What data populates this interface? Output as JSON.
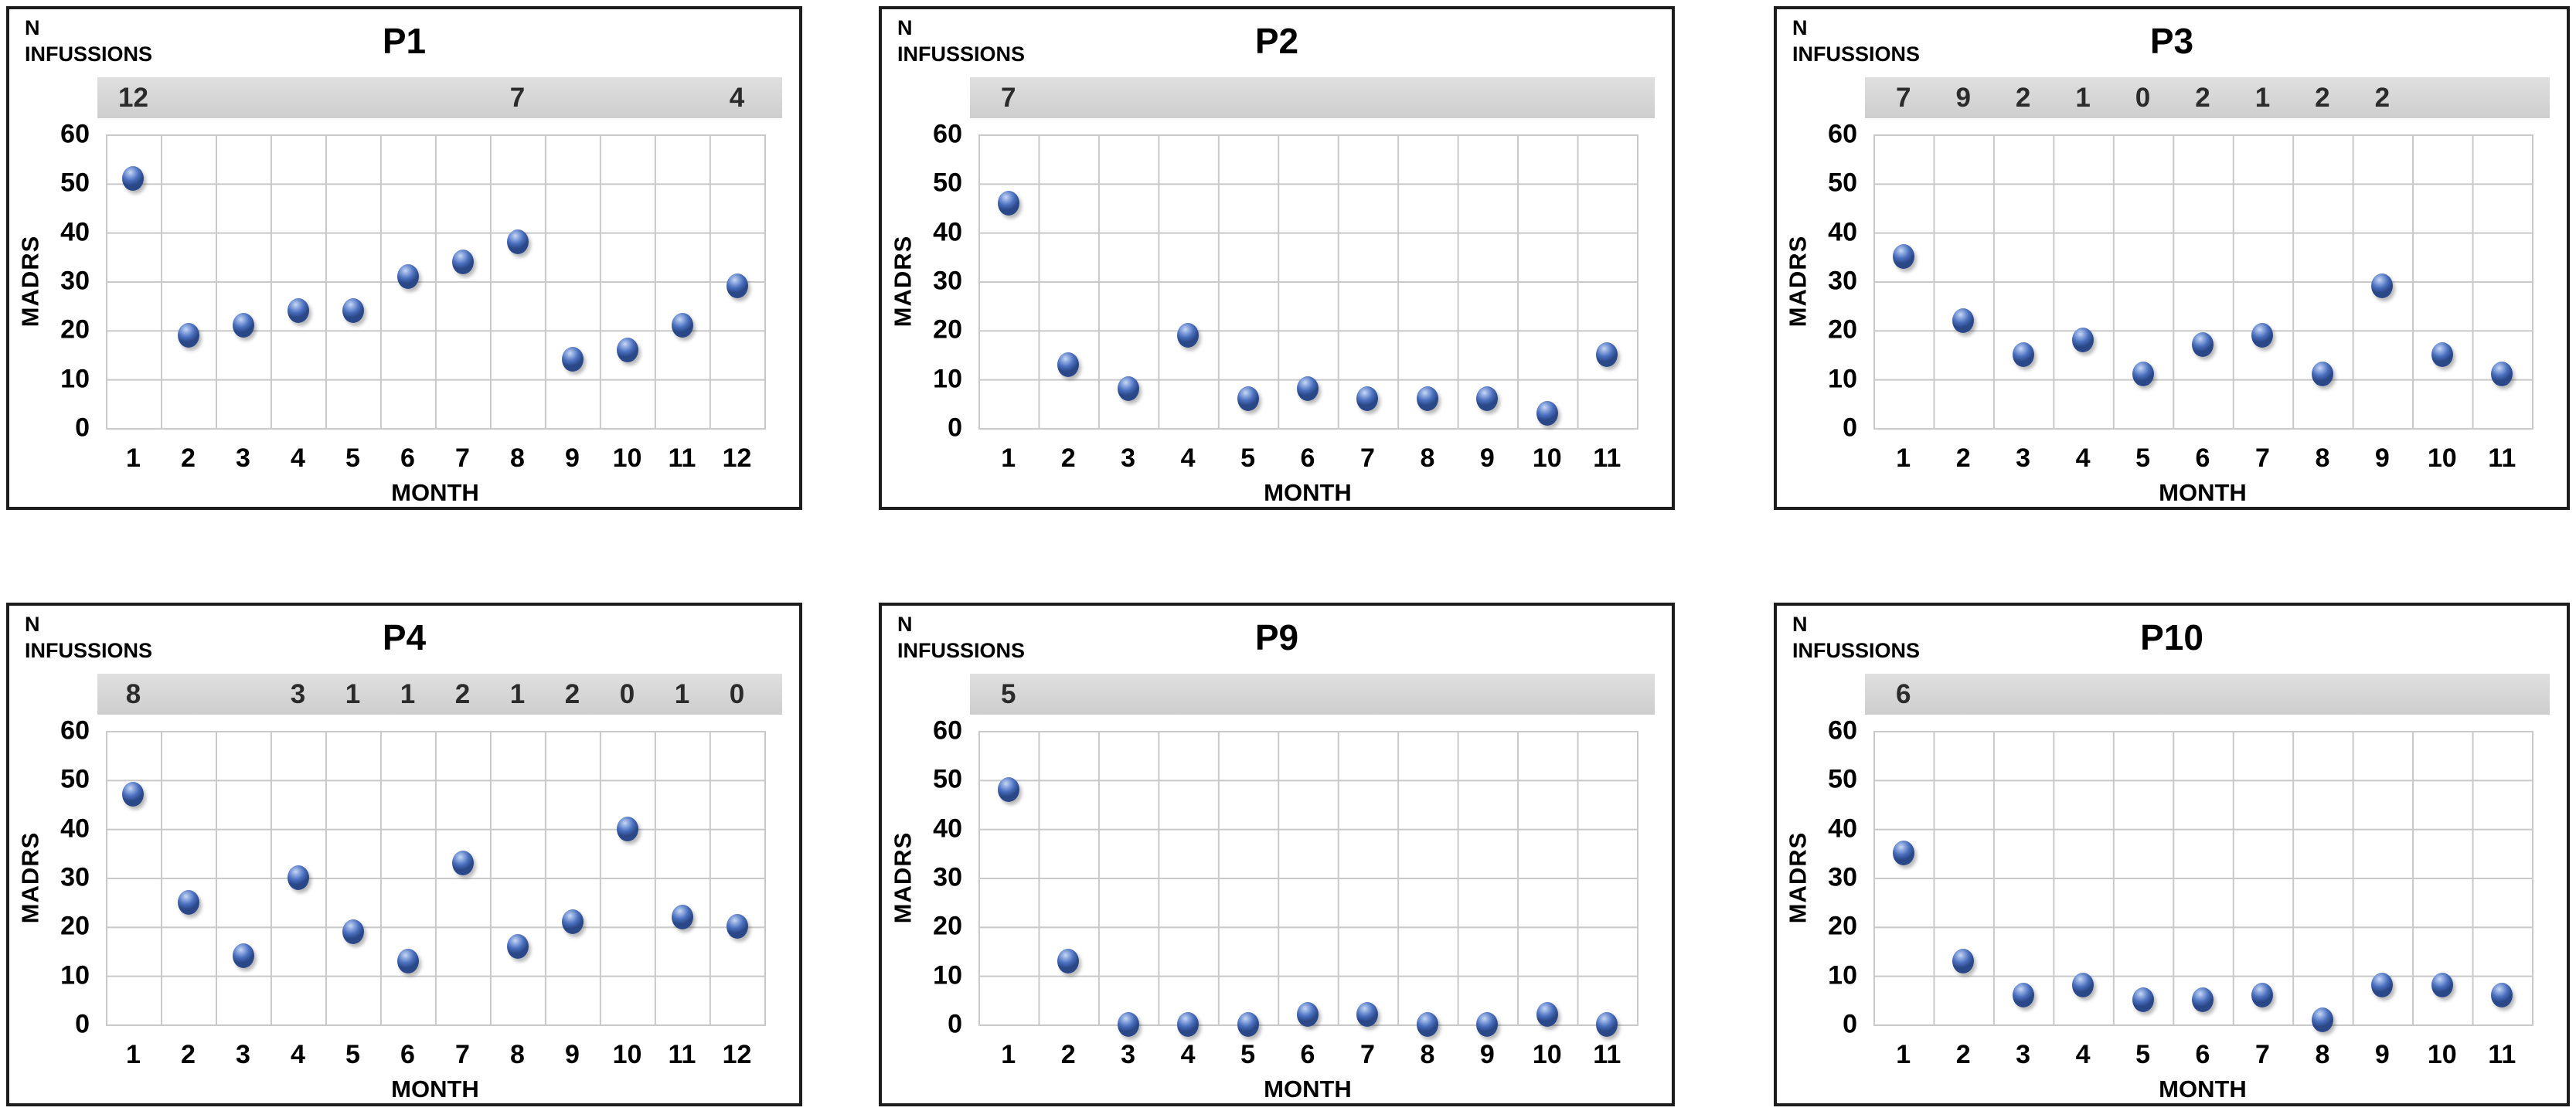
{
  "shared": {
    "xlabel": "MONTH",
    "ylabel": "MADRS",
    "infusions_line1": "N",
    "infusions_line2": "INFUSSIONS",
    "y_ticks": [
      60,
      50,
      40,
      30,
      20,
      10,
      0
    ]
  },
  "colors": {
    "point_fill": "#4a6fbe",
    "point_edge": "#2a4787",
    "point_highlight": "#c9d8f4",
    "infusion_bar_bg": "#d2d2d2",
    "gridline": "#c9c9c9",
    "panel_border": "#1d1d1d",
    "text": "#000000",
    "infusion_text": "#2b2b2b"
  },
  "chart_data": [
    {
      "type": "scatter",
      "title": "P1",
      "xlabel": "MONTH",
      "ylabel": "MADRS",
      "ylim": [
        0,
        60
      ],
      "grid": true,
      "x": [
        1,
        2,
        3,
        4,
        5,
        6,
        7,
        8,
        9,
        10,
        11,
        12
      ],
      "y": [
        51,
        19,
        21,
        24,
        24,
        31,
        34,
        38,
        14,
        16,
        21,
        29
      ],
      "infusions": [
        {
          "month": 1,
          "count": "12"
        },
        {
          "month": 8,
          "count": "7"
        },
        {
          "month": 12,
          "count": "4"
        }
      ]
    },
    {
      "type": "scatter",
      "title": "P2",
      "xlabel": "MONTH",
      "ylabel": "MADRS",
      "ylim": [
        0,
        60
      ],
      "grid": true,
      "x": [
        1,
        2,
        3,
        4,
        5,
        6,
        7,
        8,
        9,
        10,
        11
      ],
      "y": [
        46,
        13,
        8,
        19,
        6,
        8,
        6,
        6,
        6,
        3,
        15
      ],
      "infusions": [
        {
          "month": 1,
          "count": "7"
        }
      ]
    },
    {
      "type": "scatter",
      "title": "P3",
      "xlabel": "MONTH",
      "ylabel": "MADRS",
      "ylim": [
        0,
        60
      ],
      "grid": true,
      "x": [
        1,
        2,
        3,
        4,
        5,
        6,
        7,
        8,
        9,
        10,
        11
      ],
      "y": [
        35,
        22,
        15,
        18,
        11,
        17,
        19,
        11,
        29,
        15,
        11
      ],
      "infusions": [
        {
          "month": 1,
          "count": "7"
        },
        {
          "month": 2,
          "count": "9"
        },
        {
          "month": 3,
          "count": "2"
        },
        {
          "month": 4,
          "count": "1"
        },
        {
          "month": 5,
          "count": "0"
        },
        {
          "month": 6,
          "count": "2"
        },
        {
          "month": 7,
          "count": "1"
        },
        {
          "month": 8,
          "count": "2"
        },
        {
          "month": 9,
          "count": "2"
        }
      ]
    },
    {
      "type": "scatter",
      "title": "P4",
      "xlabel": "MONTH",
      "ylabel": "MADRS",
      "ylim": [
        0,
        60
      ],
      "grid": true,
      "x": [
        1,
        2,
        3,
        4,
        5,
        6,
        7,
        8,
        9,
        10,
        11,
        12
      ],
      "y": [
        47,
        25,
        14,
        30,
        19,
        13,
        33,
        16,
        21,
        40,
        22,
        20
      ],
      "infusions": [
        {
          "month": 1,
          "count": "8"
        },
        {
          "month": 4,
          "count": "3"
        },
        {
          "month": 5,
          "count": "1"
        },
        {
          "month": 6,
          "count": "1"
        },
        {
          "month": 7,
          "count": "2"
        },
        {
          "month": 8,
          "count": "1"
        },
        {
          "month": 9,
          "count": "2"
        },
        {
          "month": 10,
          "count": "0"
        },
        {
          "month": 11,
          "count": "1"
        },
        {
          "month": 12,
          "count": "0"
        }
      ]
    },
    {
      "type": "scatter",
      "title": "P9",
      "xlabel": "MONTH",
      "ylabel": "MADRS",
      "ylim": [
        0,
        60
      ],
      "grid": true,
      "x": [
        1,
        2,
        3,
        4,
        5,
        6,
        7,
        8,
        9,
        10,
        11
      ],
      "y": [
        48,
        13,
        0,
        0,
        0,
        2,
        2,
        0,
        0,
        2,
        0
      ],
      "infusions": [
        {
          "month": 1,
          "count": "5"
        }
      ]
    },
    {
      "type": "scatter",
      "title": "P10",
      "xlabel": "MONTH",
      "ylabel": "MADRS",
      "ylim": [
        0,
        60
      ],
      "grid": true,
      "x": [
        1,
        2,
        3,
        4,
        5,
        6,
        7,
        8,
        9,
        10,
        11
      ],
      "y": [
        35,
        13,
        6,
        8,
        5,
        5,
        6,
        1,
        8,
        8,
        6
      ],
      "infusions": [
        {
          "month": 1,
          "count": "6"
        }
      ]
    }
  ]
}
